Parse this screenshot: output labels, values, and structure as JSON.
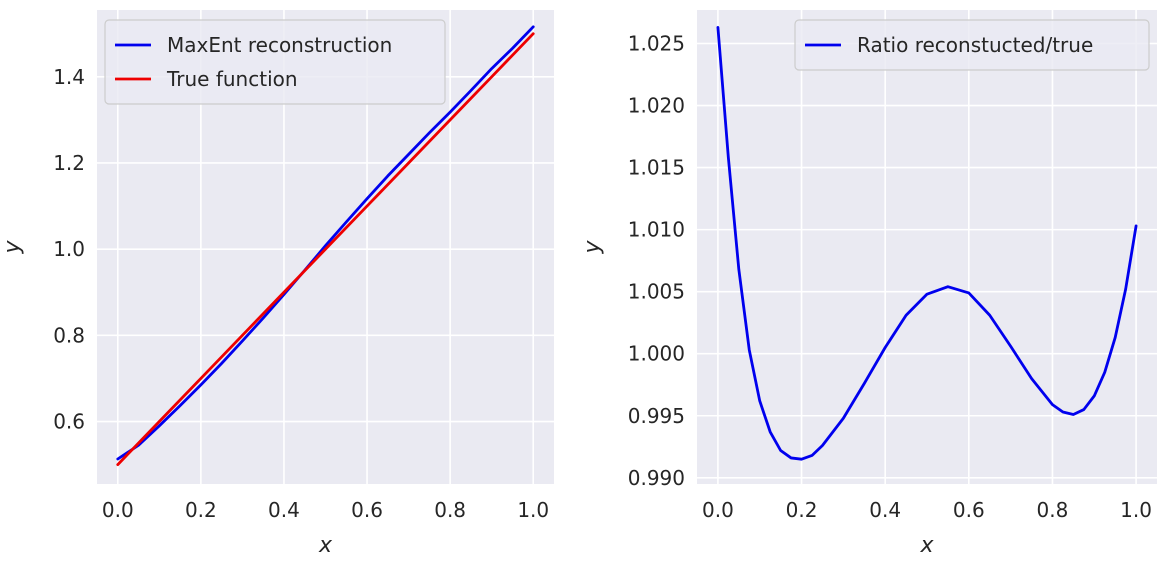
{
  "chart_data": [
    {
      "type": "line",
      "xlabel": "x",
      "ylabel": "y",
      "xlim": [
        -0.05,
        1.05
      ],
      "ylim": [
        0.455,
        1.555
      ],
      "xticks": [
        0.0,
        0.2,
        0.4,
        0.6,
        0.8,
        1.0
      ],
      "xtick_labels": [
        "0.0",
        "0.2",
        "0.4",
        "0.6",
        "0.8",
        "1.0"
      ],
      "yticks": [
        0.6,
        0.8,
        1.0,
        1.2,
        1.4
      ],
      "ytick_labels": [
        "0.6",
        "0.8",
        "1.0",
        "1.2",
        "1.4"
      ],
      "grid": true,
      "legend": "upper-left",
      "series": [
        {
          "name": "MaxEnt reconstruction",
          "color": "#0000ee",
          "x": [
            0.0,
            0.05,
            0.1,
            0.15,
            0.2,
            0.25,
            0.3,
            0.35,
            0.4,
            0.45,
            0.5,
            0.55,
            0.6,
            0.65,
            0.7,
            0.75,
            0.8,
            0.85,
            0.9,
            0.95,
            1.0
          ],
          "y": [
            0.513,
            0.545,
            0.59,
            0.637,
            0.685,
            0.735,
            0.787,
            0.84,
            0.895,
            0.951,
            1.008,
            1.063,
            1.117,
            1.17,
            1.22,
            1.27,
            1.318,
            1.368,
            1.419,
            1.466,
            1.516
          ]
        },
        {
          "name": "True function",
          "color": "#ee0000",
          "x": [
            0.0,
            0.1,
            0.2,
            0.3,
            0.4,
            0.5,
            0.6,
            0.7,
            0.8,
            0.9,
            1.0
          ],
          "y": [
            0.5,
            0.6,
            0.7,
            0.8,
            0.9,
            1.0,
            1.1,
            1.2,
            1.3,
            1.4,
            1.5
          ]
        }
      ]
    },
    {
      "type": "line",
      "xlabel": "x",
      "ylabel": "y",
      "xlim": [
        -0.05,
        1.05
      ],
      "ylim": [
        0.9895,
        1.0277
      ],
      "xticks": [
        0.0,
        0.2,
        0.4,
        0.6,
        0.8,
        1.0
      ],
      "xtick_labels": [
        "0.0",
        "0.2",
        "0.4",
        "0.6",
        "0.8",
        "1.0"
      ],
      "yticks": [
        0.99,
        0.995,
        1.0,
        1.005,
        1.01,
        1.015,
        1.02,
        1.025
      ],
      "ytick_labels": [
        "0.990",
        "0.995",
        "1.000",
        "1.005",
        "1.010",
        "1.015",
        "1.020",
        "1.025"
      ],
      "grid": true,
      "legend": "upper-right",
      "series": [
        {
          "name": "Ratio reconstucted/true",
          "color": "#0000ee",
          "x": [
            0.0,
            0.025,
            0.05,
            0.075,
            0.1,
            0.125,
            0.15,
            0.175,
            0.2,
            0.225,
            0.25,
            0.3,
            0.35,
            0.4,
            0.45,
            0.5,
            0.55,
            0.6,
            0.65,
            0.7,
            0.75,
            0.8,
            0.825,
            0.85,
            0.875,
            0.9,
            0.925,
            0.95,
            0.975,
            1.0
          ],
          "y": [
            1.0263,
            1.0158,
            1.0068,
            1.0003,
            0.9962,
            0.9937,
            0.9922,
            0.9916,
            0.9915,
            0.9918,
            0.9926,
            0.9948,
            0.9976,
            1.0005,
            1.0031,
            1.0048,
            1.0054,
            1.0049,
            1.0031,
            1.0006,
            0.998,
            0.9959,
            0.9953,
            0.9951,
            0.9955,
            0.9966,
            0.9985,
            1.0013,
            1.0052,
            1.0103
          ]
        }
      ]
    }
  ]
}
